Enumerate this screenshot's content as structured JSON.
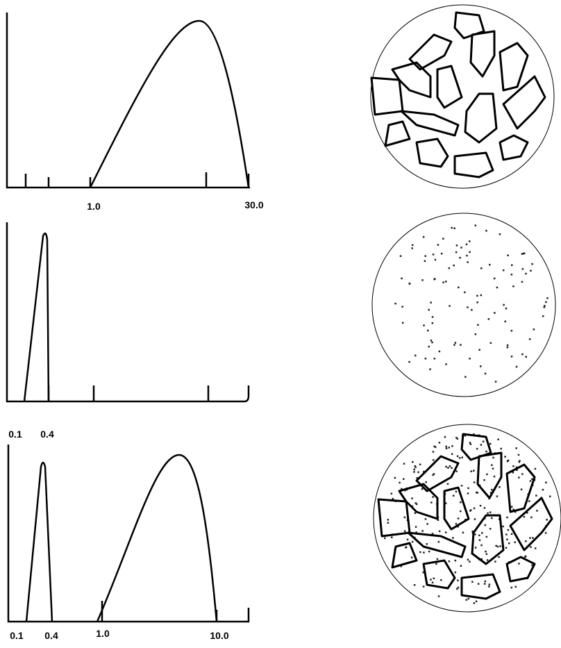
{
  "panels": [
    {
      "labels": [
        "1.0",
        "30.0"
      ]
    },
    {
      "labels": [
        "0.1",
        "0.4"
      ]
    },
    {
      "labels": [
        "0.1",
        "0.4",
        "1.0",
        "10.0"
      ]
    }
  ]
}
